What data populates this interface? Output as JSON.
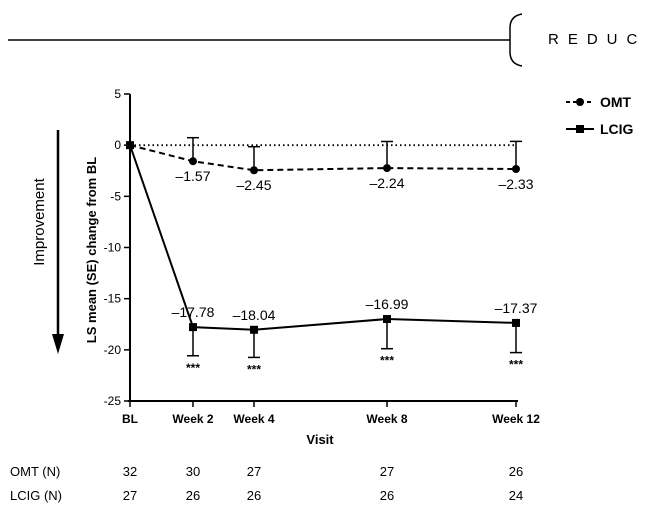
{
  "header": {
    "title_fragment": "REDUC"
  },
  "chart_data": {
    "type": "line",
    "xlabel": "Visit",
    "ylabel": "LS mean (SE) change from BL",
    "ylim": [
      -25,
      5
    ],
    "yticks": [
      "5",
      "0",
      "-5",
      "-10",
      "-15",
      "-20",
      "-25"
    ],
    "categories": [
      "BL",
      "Week 2",
      "Week 4",
      "Week 8",
      "Week 12"
    ],
    "x_weeks": [
      0,
      2,
      4,
      8,
      12
    ],
    "baseline_ref_line": 0,
    "improvement_label": "Improvement",
    "legend_position": "top-right",
    "series": [
      {
        "name": "OMT",
        "style": "dashed",
        "marker": "circle",
        "values": [
          0,
          -1.57,
          -2.45,
          -2.24,
          -2.33
        ],
        "se": [
          0,
          2.3,
          2.3,
          2.6,
          2.7
        ],
        "labels": [
          "",
          "–1.57",
          "–2.45",
          "–2.24",
          "–2.33"
        ],
        "significance": [
          "",
          "",
          "",
          "",
          ""
        ]
      },
      {
        "name": "LCIG",
        "style": "solid",
        "marker": "square",
        "values": [
          0,
          -17.78,
          -18.04,
          -16.99,
          -17.37
        ],
        "se": [
          0,
          2.8,
          2.7,
          2.9,
          2.9
        ],
        "labels": [
          "",
          "–17.78",
          "–18.04",
          "–16.99",
          "–17.37"
        ],
        "significance": [
          "",
          "***",
          "***",
          "***",
          "***"
        ]
      }
    ]
  },
  "n_table": {
    "rows": [
      {
        "label": "OMT (N)",
        "values": [
          "32",
          "30",
          "27",
          "27",
          "26"
        ]
      },
      {
        "label": "LCIG (N)",
        "values": [
          "27",
          "26",
          "26",
          "26",
          "24"
        ]
      }
    ]
  },
  "colors": {
    "line": "#000000",
    "background": "#ffffff"
  }
}
